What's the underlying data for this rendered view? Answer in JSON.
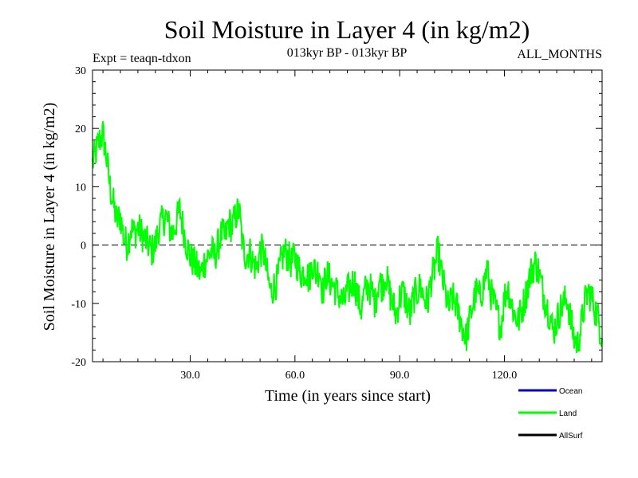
{
  "chart_data": {
    "type": "line",
    "title": "Soil Moisture in Layer 4 (in kg/m2)",
    "subtitle": "013kyr BP - 013kyr BP",
    "experiment_label": "Expt = teaqn-tdxon",
    "period_label": "ALL_MONTHS",
    "xlabel": "Time (in years since start)",
    "ylabel": "Soil Moisture in Layer 4 (in kg/m2)",
    "xlim": [
      2,
      148
    ],
    "ylim": [
      -20,
      30
    ],
    "x_ticks": [
      30,
      60,
      90,
      120
    ],
    "x_tick_labels": [
      "30.0",
      "60.0",
      "90.0",
      "120.0"
    ],
    "y_ticks": [
      -20,
      -10,
      0,
      10,
      20,
      30
    ],
    "y_tick_labels": [
      "-20",
      "-10",
      "0",
      "10",
      "20",
      "30"
    ],
    "reference_line": 0,
    "legend": [
      {
        "name": "Ocean",
        "color": "#0000cc"
      },
      {
        "name": "Land",
        "color": "#00ff00"
      },
      {
        "name": "AllSurf",
        "color": "#000000"
      }
    ],
    "series": [
      {
        "name": "Land",
        "color": "#00ff00",
        "x": [
          2,
          3,
          4,
          5,
          6,
          7,
          8,
          9,
          10,
          11,
          12,
          13,
          14,
          15,
          16,
          17,
          18,
          19,
          20,
          21,
          22,
          23,
          24,
          25,
          26,
          27,
          28,
          29,
          30,
          31,
          32,
          33,
          34,
          35,
          36,
          37,
          38,
          39,
          40,
          41,
          42,
          43,
          44,
          45,
          46,
          47,
          48,
          49,
          50,
          51,
          52,
          53,
          54,
          55,
          56,
          57,
          58,
          59,
          60,
          61,
          62,
          63,
          64,
          65,
          66,
          67,
          68,
          69,
          70,
          71,
          72,
          73,
          74,
          75,
          76,
          77,
          78,
          79,
          80,
          81,
          82,
          83,
          84,
          85,
          86,
          87,
          88,
          89,
          90,
          91,
          92,
          93,
          94,
          95,
          96,
          97,
          98,
          99,
          100,
          101,
          102,
          103,
          104,
          105,
          106,
          107,
          108,
          109,
          110,
          111,
          112,
          113,
          114,
          115,
          116,
          117,
          118,
          119,
          120,
          121,
          122,
          123,
          124,
          125,
          126,
          127,
          128,
          129,
          130,
          131,
          132,
          133,
          134,
          135,
          136,
          137,
          138,
          139,
          140,
          141,
          142,
          143,
          144,
          145,
          146,
          147,
          148
        ],
        "values": [
          14,
          16,
          18,
          19,
          15,
          10,
          7,
          4,
          5,
          1,
          0,
          3,
          2,
          3,
          2,
          1,
          0,
          -1,
          0,
          3,
          4,
          5,
          3,
          2,
          4,
          6,
          3,
          0,
          -2,
          -3,
          -4,
          -5,
          -3,
          -2,
          -1,
          -2,
          0,
          2,
          1,
          4,
          3,
          5,
          6,
          0,
          -2,
          -1,
          -3,
          -4,
          -1,
          -1,
          -5,
          -8,
          -7,
          -6,
          -3,
          -1,
          -2,
          -3,
          -2,
          -4,
          -5,
          -4,
          -6,
          -3,
          -5,
          -4,
          -8,
          -5,
          -6,
          -7,
          -8,
          -9,
          -10,
          -8,
          -7,
          -6,
          -9,
          -11,
          -8,
          -7,
          -8,
          -10,
          -6,
          -7,
          -5,
          -8,
          -10,
          -12,
          -9,
          -8,
          -10,
          -12,
          -9,
          -8,
          -7,
          -9,
          -10,
          -6,
          -4,
          -1,
          -5,
          -8,
          -11,
          -9,
          -10,
          -12,
          -14,
          -16,
          -13,
          -10,
          -8,
          -9,
          -7,
          -4,
          -8,
          -10,
          -12,
          -14,
          -9,
          -7,
          -10,
          -12,
          -13,
          -11,
          -9,
          -6,
          -4,
          -3,
          -5,
          -8,
          -10,
          -12,
          -15,
          -13,
          -11,
          -10,
          -9,
          -13,
          -16,
          -17,
          -14,
          -10,
          -8,
          -9,
          -11,
          -13,
          -16
        ]
      }
    ]
  }
}
